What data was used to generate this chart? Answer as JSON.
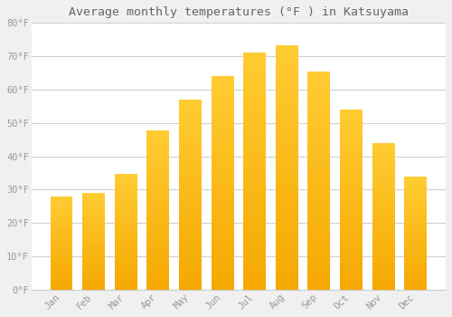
{
  "title": "Average monthly temperatures (°F ) in Katsuyama",
  "months": [
    "Jan",
    "Feb",
    "Mar",
    "Apr",
    "May",
    "Jun",
    "Jul",
    "Aug",
    "Sep",
    "Oct",
    "Nov",
    "Dec"
  ],
  "values": [
    28.0,
    29.0,
    34.8,
    47.8,
    57.0,
    64.0,
    71.2,
    73.2,
    65.5,
    54.0,
    44.0,
    33.8
  ],
  "bar_color_top": "#FFCC33",
  "bar_color_bottom": "#F5A800",
  "background_color": "#f0f0f0",
  "plot_bg_color": "#ffffff",
  "grid_color": "#d0d0d0",
  "ylim": [
    0,
    80
  ],
  "yticks": [
    0,
    10,
    20,
    30,
    40,
    50,
    60,
    70,
    80
  ],
  "ytick_labels": [
    "0°F",
    "10°F",
    "20°F",
    "30°F",
    "40°F",
    "50°F",
    "60°F",
    "70°F",
    "80°F"
  ],
  "title_fontsize": 9.5,
  "tick_fontsize": 7.5,
  "bar_width": 0.7,
  "figsize": [
    5.0,
    3.5
  ],
  "dpi": 100
}
